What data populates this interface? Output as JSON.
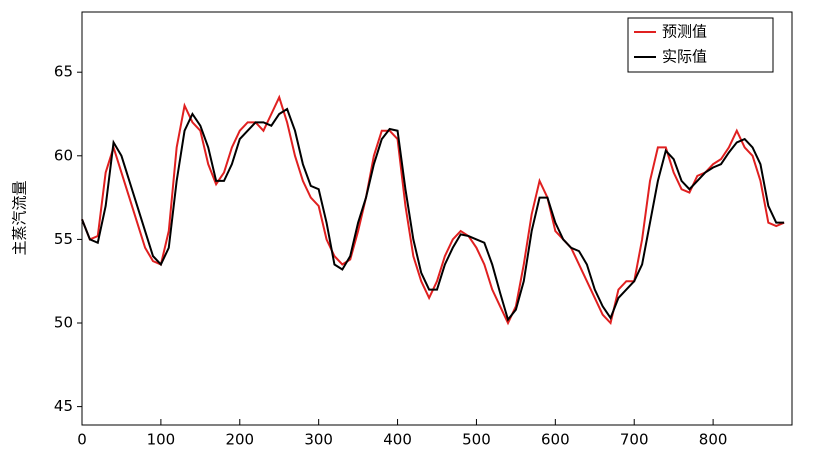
{
  "chart_data": {
    "type": "line",
    "y_label": "主蒸汽流量",
    "x": [
      0,
      10,
      20,
      30,
      40,
      50,
      60,
      70,
      80,
      90,
      100,
      110,
      120,
      130,
      140,
      150,
      160,
      170,
      180,
      190,
      200,
      210,
      220,
      230,
      240,
      250,
      260,
      270,
      280,
      290,
      300,
      310,
      320,
      330,
      340,
      350,
      360,
      370,
      380,
      390,
      400,
      410,
      420,
      430,
      440,
      450,
      460,
      470,
      480,
      490,
      500,
      510,
      520,
      530,
      540,
      550,
      560,
      570,
      580,
      590,
      600,
      610,
      620,
      630,
      640,
      650,
      660,
      670,
      680,
      690,
      700,
      710,
      720,
      730,
      740,
      750,
      760,
      770,
      780,
      790,
      800,
      810,
      820,
      830,
      840,
      850,
      860,
      870,
      880,
      890
    ],
    "series": [
      {
        "name": "预测值",
        "color": "#e02020",
        "values": [
          56.2,
          55,
          55.2,
          59,
          60.5,
          59,
          57.5,
          56,
          54.5,
          53.7,
          53.5,
          55.5,
          60.5,
          63,
          62,
          61.5,
          59.5,
          58.3,
          59,
          60.5,
          61.5,
          62,
          62,
          61.5,
          62.5,
          63.5,
          62,
          60,
          58.5,
          57.5,
          57,
          55,
          54,
          53.5,
          53.8,
          55.5,
          57.5,
          60,
          61.5,
          61.5,
          61,
          57,
          54,
          52.5,
          51.5,
          52.5,
          54,
          55,
          55.5,
          55.2,
          54.5,
          53.5,
          52,
          51,
          50,
          51,
          53.5,
          56.5,
          58.5,
          57.5,
          55.5,
          55,
          54.5,
          53.5,
          52.5,
          51.5,
          50.5,
          50,
          52,
          52.5,
          52.5,
          55,
          58.5,
          60.5,
          60.5,
          59,
          58,
          57.8,
          58.8,
          59,
          59.5,
          59.8,
          60.5,
          61.5,
          60.5,
          60,
          58.5,
          56,
          55.8,
          56
        ]
      },
      {
        "name": "实际值",
        "color": "#000000",
        "values": [
          56.2,
          55,
          54.8,
          57,
          60.8,
          60,
          58.5,
          57,
          55.5,
          54,
          53.5,
          54.5,
          58.5,
          61.5,
          62.5,
          61.8,
          60.5,
          58.5,
          58.5,
          59.5,
          61,
          61.5,
          62,
          62,
          61.8,
          62.5,
          62.8,
          61.5,
          59.5,
          58.2,
          58,
          56,
          53.5,
          53.2,
          54,
          56,
          57.5,
          59.5,
          61,
          61.6,
          61.5,
          58,
          55,
          53,
          52,
          52,
          53.5,
          54.5,
          55.3,
          55.2,
          55,
          54.8,
          53.5,
          51.8,
          50.2,
          50.8,
          52.5,
          55.5,
          57.5,
          57.5,
          56,
          55,
          54.5,
          54.3,
          53.5,
          52,
          51,
          50.3,
          51.5,
          52,
          52.5,
          53.5,
          56,
          58.5,
          60.3,
          59.8,
          58.5,
          58,
          58.5,
          59,
          59.3,
          59.5,
          60.2,
          60.8,
          61,
          60.5,
          59.5,
          57,
          56,
          56
        ]
      }
    ],
    "xlim": [
      0,
      900
    ],
    "ylim": [
      43.9,
      68.6
    ],
    "xticks": [
      0,
      100,
      200,
      300,
      400,
      500,
      600,
      700,
      800
    ],
    "yticks": [
      45,
      50,
      55,
      60,
      65
    ],
    "legend": "top-right"
  }
}
